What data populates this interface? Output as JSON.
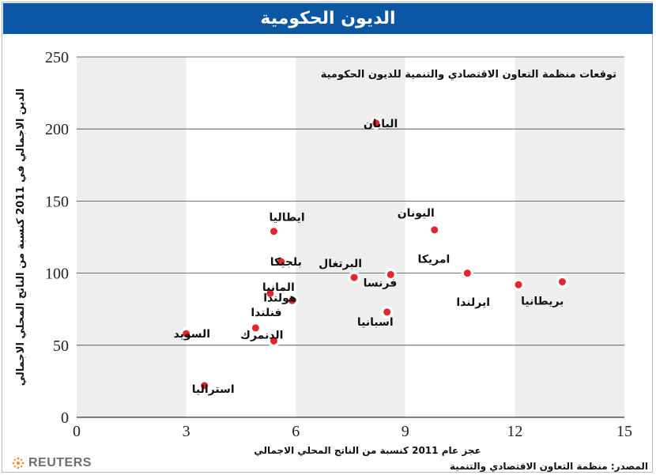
{
  "header": {
    "title": "الديون الحكومية"
  },
  "chart_data": {
    "type": "scatter",
    "title": "توقعات منظمة التعاون الاقتصادي والتنمية للديون الحكومية",
    "xlabel": "عجز عام 2011  كنسبة من الناتج المحلي الاجمالي",
    "ylabel": "الدين الاجمالي في 2011 كنسبة من الناتج المحلي الاجمالي",
    "xlim": [
      0,
      15
    ],
    "ylim": [
      0,
      250
    ],
    "xticks": [
      0,
      3,
      6,
      9,
      12,
      15
    ],
    "yticks": [
      0,
      50,
      100,
      150,
      200,
      250
    ],
    "points": [
      {
        "label": "اليابان",
        "x": 8.2,
        "y": 204
      },
      {
        "label": "اليونان",
        "x": 9.8,
        "y": 130
      },
      {
        "label": "ايطاليا",
        "x": 5.4,
        "y": 129
      },
      {
        "label": "بلجيكا",
        "x": 5.6,
        "y": 108
      },
      {
        "label": "البرتغال",
        "x": 7.6,
        "y": 97
      },
      {
        "label": "فرنسا",
        "x": 8.6,
        "y": 99
      },
      {
        "label": "امريكا",
        "x": 10.7,
        "y": 100
      },
      {
        "label": "ايرلندا",
        "x": 12.1,
        "y": 92
      },
      {
        "label": "بريطانيا",
        "x": 13.3,
        "y": 94
      },
      {
        "label": "المانيا",
        "x": 5.3,
        "y": 86
      },
      {
        "label": "هولندا",
        "x": 5.9,
        "y": 81
      },
      {
        "label": "اسبانيا",
        "x": 8.5,
        "y": 73
      },
      {
        "label": "فنلندا",
        "x": 4.9,
        "y": 62
      },
      {
        "label": "الدنمرك",
        "x": 5.4,
        "y": 53
      },
      {
        "label": "السويد",
        "x": 3.0,
        "y": 58
      },
      {
        "label": "استراليا",
        "x": 3.5,
        "y": 22
      }
    ],
    "grid": true,
    "marker_color": "#e3262b",
    "band_color": "#eeeeee"
  },
  "footer": {
    "source": "المصدر: منظمة التعاون الاقتصادي والتنمية",
    "brand": "REUTERS"
  }
}
